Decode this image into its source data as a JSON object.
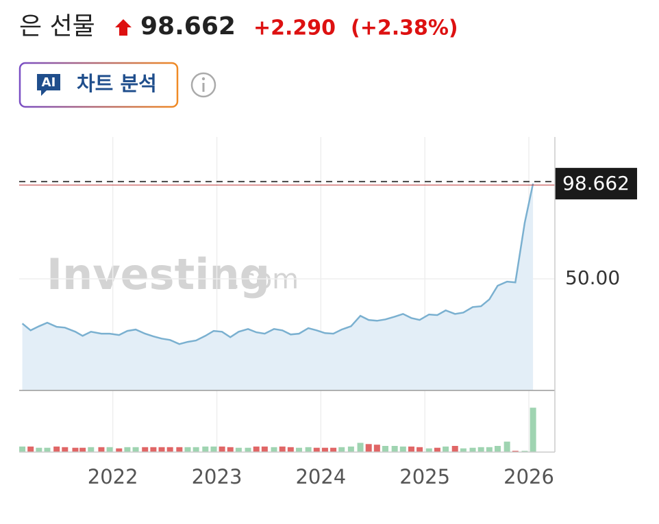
{
  "header": {
    "title": "은 선물",
    "price": "98.662",
    "change": "+2.290",
    "change_pct": "(+2.38%)",
    "ai_badge": "AI",
    "ai_button": "차트 분석"
  },
  "chart_data": {
    "type": "area",
    "watermark": {
      "brand": "Investing",
      "suffix": ".com"
    },
    "x": [
      2021.13,
      2021.21,
      2021.29,
      2021.37,
      2021.46,
      2021.54,
      2021.64,
      2021.71,
      2021.79,
      2021.89,
      2021.97,
      2022.06,
      2022.14,
      2022.22,
      2022.31,
      2022.39,
      2022.47,
      2022.55,
      2022.64,
      2022.72,
      2022.8,
      2022.89,
      2022.97,
      2023.05,
      2023.13,
      2023.21,
      2023.3,
      2023.38,
      2023.46,
      2023.55,
      2023.63,
      2023.71,
      2023.79,
      2023.88,
      2023.96,
      2024.04,
      2024.12,
      2024.2,
      2024.29,
      2024.38,
      2024.46,
      2024.54,
      2024.62,
      2024.71,
      2024.79,
      2024.87,
      2024.95,
      2025.04,
      2025.12,
      2025.2,
      2025.29,
      2025.37,
      2025.46,
      2025.54,
      2025.62,
      2025.7,
      2025.79,
      2025.87,
      2025.96,
      2026.04
    ],
    "values": [
      27.2,
      23.7,
      25.8,
      27.6,
      25.5,
      25.1,
      23.0,
      20.9,
      23.0,
      22.0,
      22.0,
      21.3,
      23.4,
      24.1,
      22.0,
      20.6,
      19.5,
      18.8,
      16.7,
      17.8,
      18.5,
      20.9,
      23.4,
      23.0,
      20.2,
      23.0,
      24.4,
      22.7,
      22.0,
      24.4,
      23.7,
      21.6,
      22.0,
      24.8,
      23.7,
      22.3,
      22.0,
      24.1,
      25.8,
      31.1,
      29.0,
      28.6,
      29.3,
      30.7,
      32.1,
      30.0,
      29.0,
      31.8,
      31.5,
      33.9,
      32.1,
      32.8,
      35.6,
      36.0,
      39.5,
      46.5,
      48.6,
      48.2,
      78.7,
      98.662
    ],
    "color": "#7ab0d0",
    "fill": "#e3eef7",
    "xlim": [
      2021.1,
      2026.25
    ],
    "xticks": [
      2022,
      2023,
      2024,
      2025,
      2026
    ],
    "ylim": [
      -7,
      122.5
    ],
    "yticks": [
      {
        "value": 50,
        "label": "50.00"
      }
    ],
    "grid": true,
    "volume": {
      "values": [
        9,
        9,
        7,
        7,
        9,
        8,
        7,
        7,
        8,
        8,
        8,
        6,
        8,
        8,
        8,
        8,
        8,
        8,
        8,
        8,
        8,
        9,
        9,
        9,
        8,
        7,
        7,
        9,
        9,
        8,
        9,
        8,
        7,
        8,
        7,
        7,
        7,
        8,
        9,
        15,
        13,
        12,
        10,
        10,
        9,
        9,
        8,
        6,
        7,
        9,
        10,
        6,
        7,
        8,
        8,
        10,
        17,
        2,
        2,
        72
      ],
      "ylim": [
        0,
        100
      ],
      "up_color": "#9fd4b1",
      "down_color": "#e06666"
    }
  }
}
